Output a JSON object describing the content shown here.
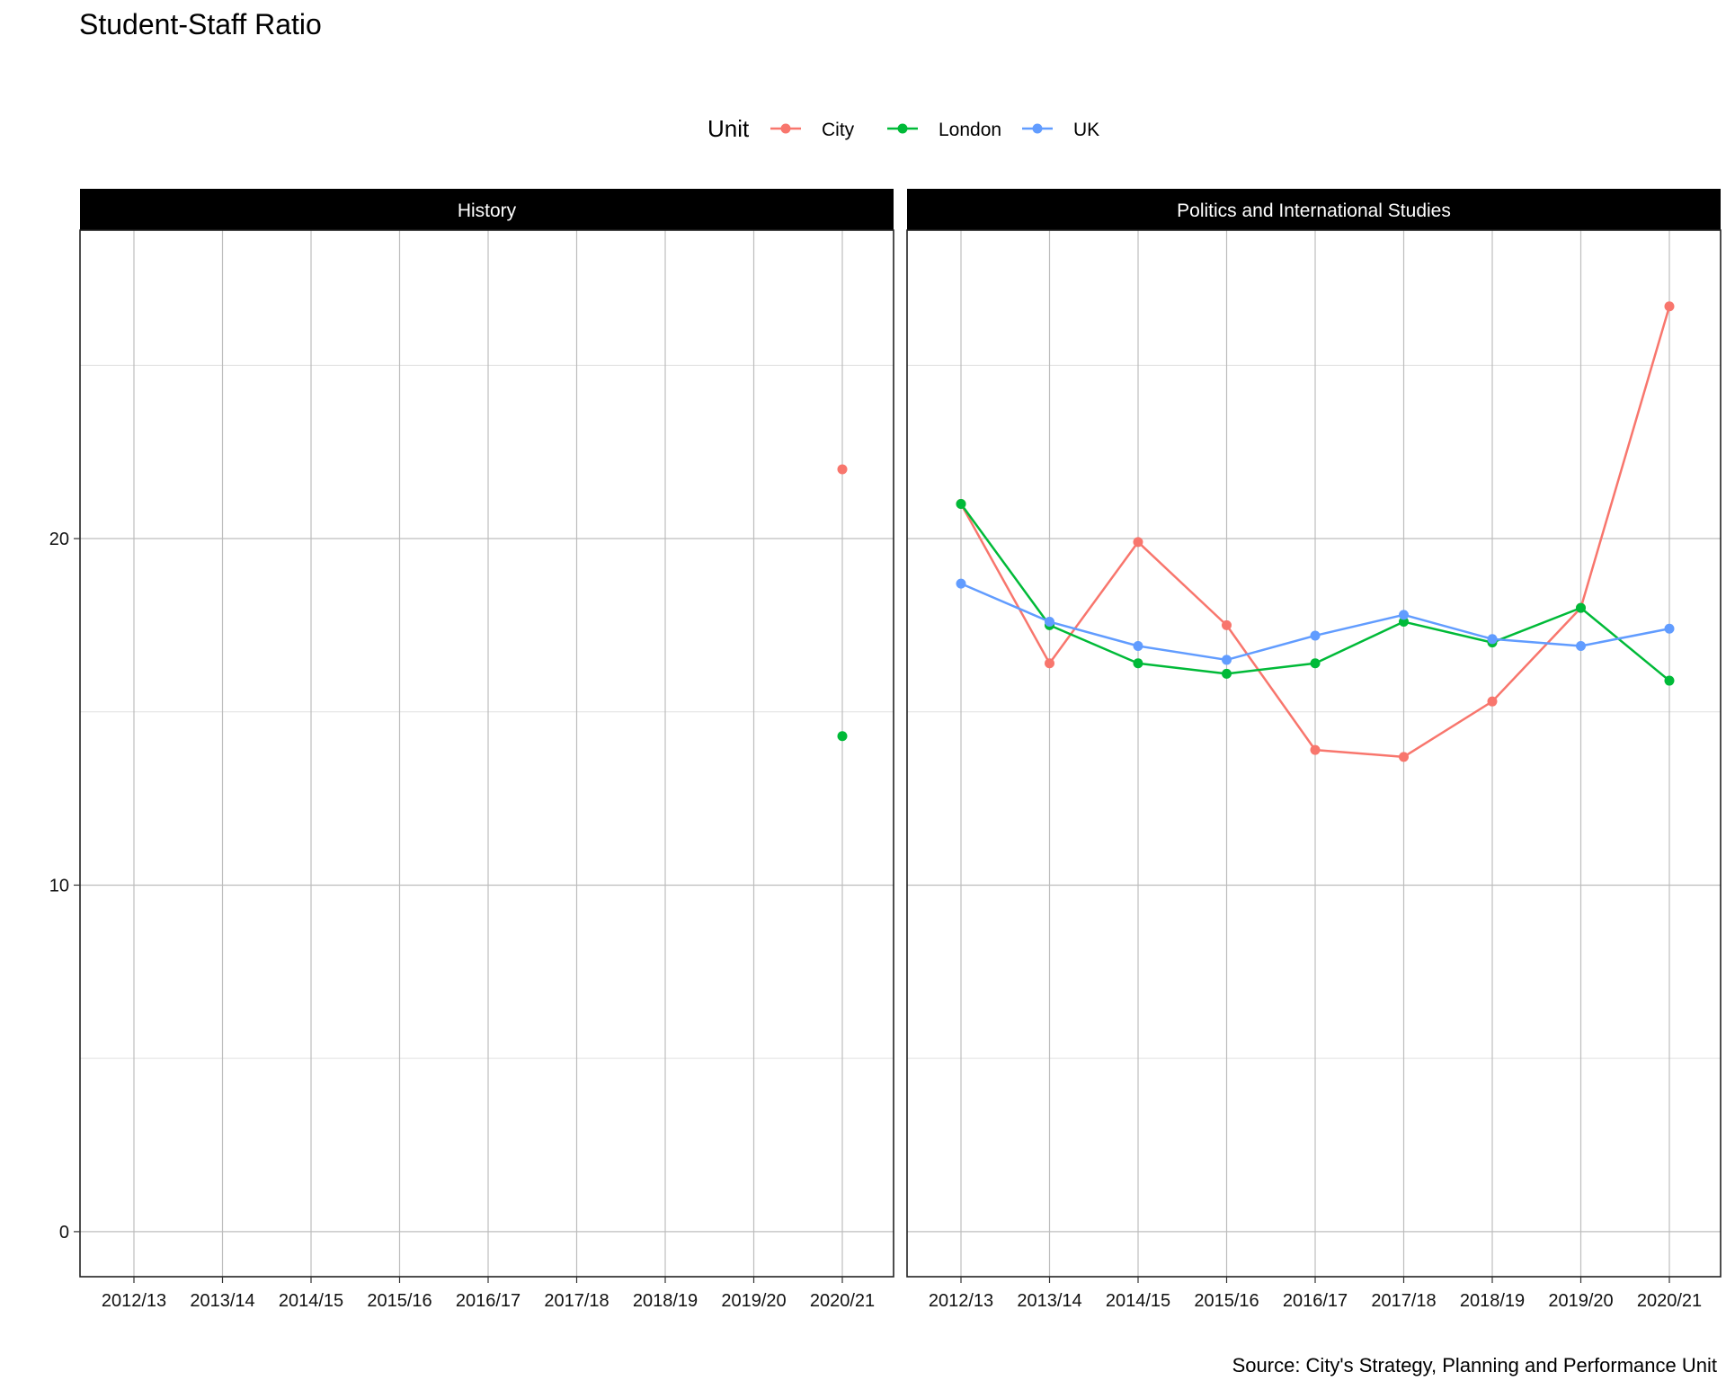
{
  "chart_data": {
    "type": "line",
    "title": "Student-Staff Ratio",
    "caption": "Source: City's Strategy, Planning and Performance Unit",
    "xlabel": "",
    "ylabel": "",
    "ylim": [
      -1.3,
      28.9
    ],
    "y_ticks": [
      0,
      10,
      20
    ],
    "grid": true,
    "legend": {
      "title": "Unit",
      "placement": "top",
      "entries": [
        "City",
        "London",
        "UK"
      ]
    },
    "categories": [
      "2012/13",
      "2013/14",
      "2014/15",
      "2015/16",
      "2016/17",
      "2017/18",
      "2018/19",
      "2019/20",
      "2020/21"
    ],
    "panels": [
      {
        "title": "History",
        "series": [
          {
            "name": "City",
            "color": "#F8766D",
            "values": [
              null,
              null,
              null,
              null,
              null,
              null,
              null,
              null,
              22.0
            ]
          },
          {
            "name": "London",
            "color": "#00BA38",
            "values": [
              null,
              null,
              null,
              null,
              null,
              null,
              null,
              null,
              14.3
            ]
          },
          {
            "name": "UK",
            "color": "#619CFF",
            "values": [
              null,
              null,
              null,
              null,
              null,
              null,
              null,
              null,
              null
            ]
          }
        ]
      },
      {
        "title": "Politics and International Studies",
        "series": [
          {
            "name": "City",
            "color": "#F8766D",
            "values": [
              21.0,
              16.4,
              19.9,
              17.5,
              13.9,
              13.7,
              15.3,
              18.0,
              26.7
            ]
          },
          {
            "name": "London",
            "color": "#00BA38",
            "values": [
              21.0,
              17.5,
              16.4,
              16.1,
              16.4,
              17.6,
              17.0,
              18.0,
              15.9
            ]
          },
          {
            "name": "UK",
            "color": "#619CFF",
            "values": [
              18.7,
              17.6,
              16.9,
              16.5,
              17.2,
              17.8,
              17.1,
              16.9,
              17.4
            ]
          }
        ]
      }
    ]
  }
}
